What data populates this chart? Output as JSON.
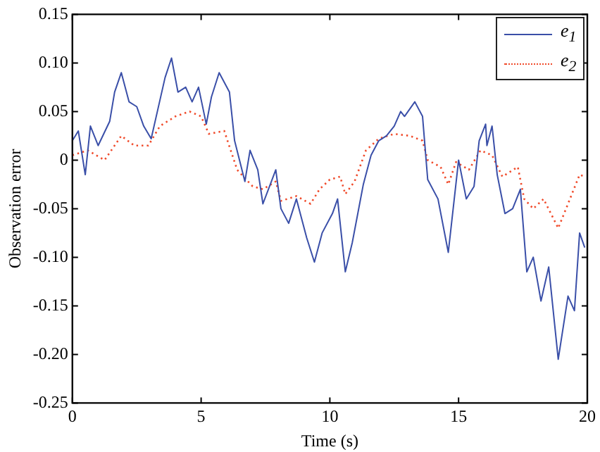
{
  "chart_data": {
    "type": "line",
    "xlabel": "Time (s)",
    "ylabel": "Observation error",
    "xlim": [
      0,
      20
    ],
    "xticks": [
      0,
      5,
      10,
      15,
      20
    ],
    "ylim": [
      -0.25,
      0.15
    ],
    "yticks": [
      {
        "value": -0.25,
        "label": "-0.25"
      },
      {
        "value": -0.2,
        "label": "-0.20"
      },
      {
        "value": -0.15,
        "label": "-0.15"
      },
      {
        "value": -0.1,
        "label": "-0.10"
      },
      {
        "value": -0.05,
        "label": "-0.05"
      },
      0,
      {
        "value": 0.05,
        "label": "0.05"
      },
      {
        "value": 0.1,
        "label": "0.10"
      },
      {
        "value": 0.15,
        "label": "0.15"
      }
    ],
    "grid": false,
    "legend": "top right",
    "marker": "none",
    "series": [
      {
        "name": "e$_{1}$",
        "color": "#3a4fa8",
        "line_style": "solid",
        "x": [
          0,
          0.23,
          0.5,
          0.7,
          1.0,
          1.45,
          1.64,
          1.9,
          2.2,
          2.5,
          2.77,
          3.06,
          3.3,
          3.6,
          3.85,
          4.1,
          4.4,
          4.65,
          4.9,
          5.2,
          5.4,
          5.7,
          6.1,
          6.3,
          6.7,
          6.9,
          7.2,
          7.4,
          7.9,
          8.1,
          8.4,
          8.7,
          9.1,
          9.4,
          9.7,
          10.1,
          10.3,
          10.6,
          10.87,
          11.3,
          11.6,
          11.9,
          12.2,
          12.5,
          12.75,
          12.9,
          13.3,
          13.6,
          13.8,
          14.2,
          14.6,
          15.0,
          15.3,
          15.6,
          15.8,
          16.05,
          16.1,
          16.3,
          16.5,
          16.8,
          17.1,
          17.4,
          17.65,
          17.9,
          18.2,
          18.5,
          18.87,
          19.25,
          19.5,
          19.7,
          19.9
        ],
        "values": [
          0.02,
          0.03,
          -0.015,
          0.035,
          0.015,
          0.04,
          0.07,
          0.09,
          0.06,
          0.055,
          0.035,
          0.022,
          0.05,
          0.085,
          0.105,
          0.07,
          0.075,
          0.06,
          0.075,
          0.037,
          0.065,
          0.09,
          0.07,
          0.02,
          -0.022,
          0.01,
          -0.01,
          -0.045,
          -0.01,
          -0.05,
          -0.065,
          -0.04,
          -0.08,
          -0.105,
          -0.075,
          -0.055,
          -0.04,
          -0.115,
          -0.085,
          -0.025,
          0.005,
          0.02,
          0.025,
          0.035,
          0.05,
          0.045,
          0.06,
          0.045,
          -0.02,
          -0.04,
          -0.095,
          0.0,
          -0.04,
          -0.027,
          0.02,
          0.037,
          0.015,
          0.035,
          -0.015,
          -0.055,
          -0.05,
          -0.03,
          -0.115,
          -0.1,
          -0.145,
          -0.11,
          -0.205,
          -0.14,
          -0.155,
          -0.075,
          -0.09
        ]
      },
      {
        "name": "e$_{2}$",
        "color": "#f04a2a",
        "line_style": "dotted",
        "x": [
          0,
          0.6,
          1.25,
          1.9,
          2.4,
          2.95,
          3.4,
          4.0,
          4.55,
          5.0,
          5.3,
          5.9,
          6.4,
          7.0,
          7.4,
          7.9,
          8.1,
          8.7,
          9.25,
          9.6,
          10.0,
          10.4,
          10.6,
          10.96,
          11.4,
          11.9,
          12.5,
          13.1,
          13.6,
          13.8,
          14.3,
          14.6,
          14.9,
          15.4,
          15.85,
          16.3,
          16.7,
          17.3,
          17.55,
          17.9,
          18.3,
          18.87,
          19.25,
          19.7,
          19.9
        ],
        "values": [
          0.005,
          0.01,
          0.0,
          0.025,
          0.015,
          0.015,
          0.035,
          0.045,
          0.05,
          0.045,
          0.027,
          0.03,
          -0.01,
          -0.027,
          -0.03,
          -0.022,
          -0.042,
          -0.037,
          -0.045,
          -0.03,
          -0.02,
          -0.017,
          -0.035,
          -0.022,
          0.01,
          0.022,
          0.027,
          0.025,
          0.02,
          0.0,
          -0.007,
          -0.025,
          -0.002,
          -0.01,
          0.01,
          0.005,
          -0.017,
          -0.007,
          -0.04,
          -0.05,
          -0.04,
          -0.07,
          -0.045,
          -0.015,
          -0.017
        ]
      }
    ]
  }
}
